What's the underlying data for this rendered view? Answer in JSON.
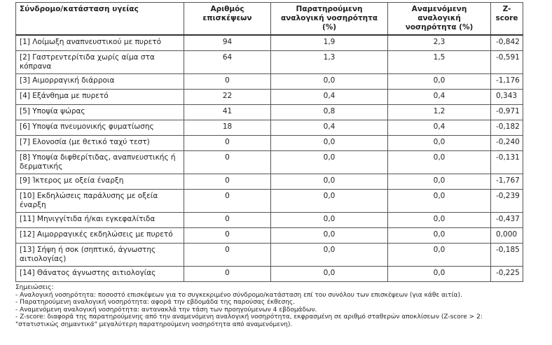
{
  "table": {
    "header": [
      "Σύνδρομο/κατάσταση υγείας",
      "Αριθμός επισκέψεων",
      "Παρατηρούμενη αναλογική νοσηρότητα (%)",
      "Αναμενόμενη αναλογική νοσηρότητα (%)",
      "Z-score"
    ],
    "rows": [
      [
        "[1] Λοίμωξη αναπνευστικού με πυρετό",
        94,
        "1,9",
        "2,3",
        "-0,842"
      ],
      [
        "[2] Γαστρεντερίτιδα χωρίς αίμα στα κόπρανα",
        64,
        "1,3",
        "1,5",
        "-0,591"
      ],
      [
        "[3] Αιμορραγική διάρροια",
        0,
        "0,0",
        "0,0",
        "-1,176"
      ],
      [
        "[4] Εξάνθημα με πυρετό",
        22,
        "0,4",
        "0,4",
        "0,343"
      ],
      [
        "[5] Υποψία ψώρας",
        41,
        "0,8",
        "1,2",
        "-0,971"
      ],
      [
        "[6] Υποψία πνευμονικής φυματίωσης",
        18,
        "0,4",
        "0,4",
        "-0,182"
      ],
      [
        "[7] Ελονοσία (με θετικό ταχύ τεστ)",
        0,
        "0,0",
        "0,0",
        "-0,240"
      ],
      [
        "[8] Υποψία διφθερίτιδας, αναπνευστικής ή δερματικής",
        0,
        "0,0",
        "0,0",
        "-0,131"
      ],
      [
        "[9] Ίκτερος με οξεία έναρξη",
        0,
        "0,0",
        "0,0",
        "-1,767"
      ],
      [
        "[10] Εκδηλώσεις παράλυσης με οξεία έναρξη",
        0,
        "0,0",
        "0,0",
        "-0,239"
      ],
      [
        "[11] Μηνιγγίτιδα ή/και εγκεφαλίτιδα",
        0,
        "0,0",
        "0,0",
        "-0,437"
      ],
      [
        "[12] Αιμορραγικές εκδηλώσεις με πυρετό",
        0,
        "0,0",
        "0,0",
        "0,000"
      ],
      [
        "[13] Σήψη ή σοκ (σηπτικό, άγνωστης αιτιολογίας)",
        0,
        "0,0",
        "0,0",
        "-0,185"
      ],
      [
        "[14] Θάνατος άγνωστης αιτιολογίας",
        0,
        "0,0",
        "0,0",
        "-0,225"
      ]
    ]
  },
  "notes": {
    "title": "Σημειώσεις:",
    "lines": [
      "- Αναλογική νοσηρότητα: ποσοστό επισκέψεων για το συγκεκριμένο σύνδρομο/κατάσταση επί του συνόλου των επισκέψεων (για κάθε αιτία).",
      "- Παρατηρούμενη αναλογική νοσηρότητα: αφορά την εβδομάδα της παρούσας έκθεσης.",
      "- Αναμενόμενη αναλογική νοσηρότητα: αντανακλά την τάση των προηγούμενων 4 εβδομάδων.",
      "- Z-score: διαφορά της παρατηρούμενης από την αναμενόμενη αναλογική νοσηρότητα, εκφρασμένη σε αριθμό σταθερών αποκλίσεων (Z-score > 2: \"στατιστικώς σημαντικά\" μεγαλύτερη παρατηρούμενη νοσηρότητα από αναμενόμενη)."
    ]
  }
}
